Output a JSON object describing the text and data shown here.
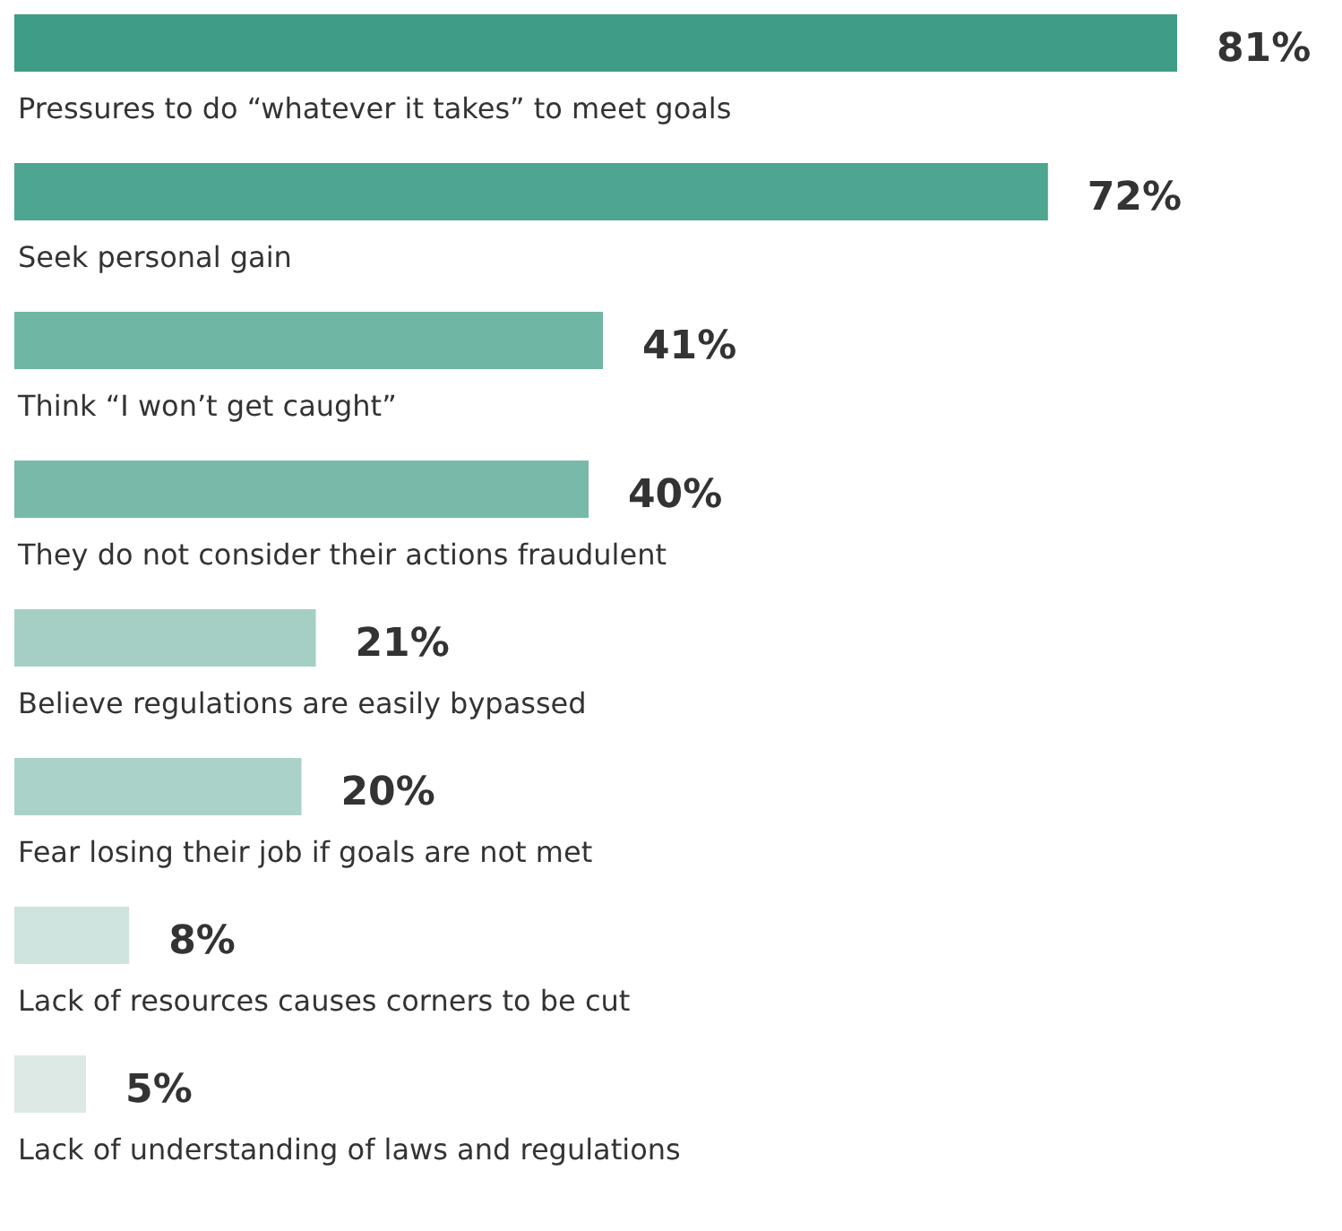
{
  "chart_data": {
    "type": "bar",
    "orientation": "horizontal",
    "tick_labels": false,
    "categories": [
      "Pressures to do “whatever it takes” to meet goals",
      "Seek personal gain",
      "Think “I won’t get caught”",
      "They do not consider their actions fraudulent",
      "Believe regulations are easily bypassed",
      "Fear losing their job if goals are not met",
      "Lack of resources causes corners to be cut",
      "Lack of understanding of laws and regulations"
    ],
    "values": [
      81,
      72,
      41,
      40,
      21,
      20,
      8,
      5
    ],
    "value_labels": [
      "81%",
      "72%",
      "41%",
      "40%",
      "21%",
      "20%",
      "8%",
      "5%"
    ],
    "colors": [
      "#3f9c86",
      "#4ea590",
      "#70b6a4",
      "#78baa9",
      "#a5cfc4",
      "#abd2c8",
      "#cfe4de",
      "#dce9e5"
    ]
  }
}
